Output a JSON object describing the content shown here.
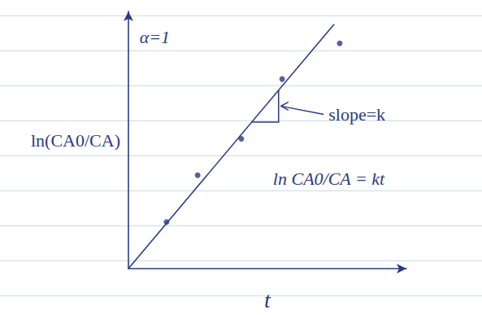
{
  "chart_data": {
    "type": "scatter",
    "annotations": [
      {
        "text": "α=1",
        "x": 0.4,
        "y": 9.0
      },
      {
        "text": "ln CA0/CA = kt",
        "x": 5.2,
        "y": 3.5
      }
    ],
    "slope_label": {
      "text": "slope=k",
      "x": 7.2,
      "y": 6.0
    },
    "x_label": "t",
    "y_label": "ln(CA0/CA)",
    "xlim": [
      0,
      10
    ],
    "ylim": [
      0,
      10
    ],
    "tick_labels": false,
    "grid": false,
    "series": [
      {
        "type": "scatter",
        "marker": "circle",
        "color": "#2b3a86",
        "x": [
          1.37,
          2.49,
          4.06,
          5.53,
          7.6
        ],
        "values": [
          1.81,
          3.63,
          5.05,
          7.37,
          8.76
        ]
      },
      {
        "type": "line",
        "line_style": "solid",
        "color": "#2b3a86",
        "x": [
          0,
          7.4
        ],
        "values": [
          0,
          9.5
        ]
      }
    ]
  }
}
